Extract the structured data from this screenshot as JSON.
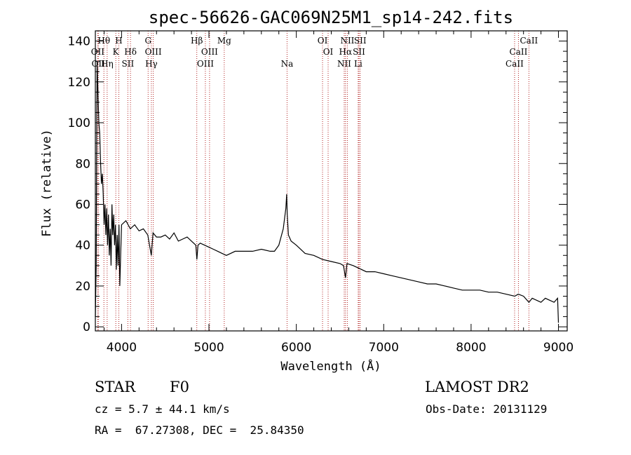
{
  "chart_data": {
    "type": "line",
    "title": "spec-56626-GAC069N25M1_sp14-242.fits",
    "xlabel": "Wavelength (Å)",
    "ylabel": "Flux (relative)",
    "xlim": [
      3700,
      9100
    ],
    "ylim": [
      -2,
      145
    ],
    "xticks": [
      "4000",
      "5000",
      "6000",
      "7000",
      "8000",
      "9000"
    ],
    "yticks": [
      "0",
      "20",
      "40",
      "60",
      "80",
      "100",
      "120",
      "140"
    ],
    "grid": false,
    "series": [
      {
        "x": [
          3700,
          3710,
          3720,
          3730,
          3740,
          3750,
          3760,
          3770,
          3780,
          3790,
          3800,
          3810,
          3820,
          3830,
          3840,
          3850,
          3860,
          3870,
          3880,
          3890,
          3900,
          3910,
          3920,
          3930,
          3940,
          3950,
          3960,
          3970,
          3980,
          3990,
          4000,
          4050,
          4100,
          4150,
          4200,
          4250,
          4300,
          4340,
          4360,
          4400,
          4450,
          4500,
          4550,
          4600,
          4650,
          4700,
          4750,
          4800,
          4850,
          4862,
          4875,
          4900,
          4950,
          5000,
          5050,
          5100,
          5150,
          5200,
          5300,
          5400,
          5500,
          5600,
          5700,
          5750,
          5800,
          5850,
          5880,
          5890,
          5896,
          5910,
          5940,
          6000,
          6100,
          6200,
          6300,
          6400,
          6500,
          6540,
          6563,
          6580,
          6650,
          6700,
          6800,
          6900,
          7000,
          7100,
          7200,
          7300,
          7400,
          7500,
          7600,
          7700,
          7800,
          7900,
          8000,
          8100,
          8200,
          8300,
          8400,
          8500,
          8540,
          8600,
          8662,
          8700,
          8750,
          8800,
          8850,
          8900,
          8950,
          8990,
          9000
        ],
        "values": [
          5,
          30,
          130,
          115,
          100,
          95,
          80,
          70,
          75,
          65,
          50,
          60,
          45,
          58,
          40,
          55,
          35,
          48,
          30,
          60,
          45,
          55,
          40,
          50,
          28,
          45,
          30,
          50,
          20,
          35,
          50,
          52,
          48,
          50,
          47,
          48,
          45,
          35,
          46,
          44,
          44,
          45,
          43,
          46,
          42,
          43,
          44,
          42,
          40,
          33,
          40,
          41,
          40,
          39,
          38,
          37,
          36,
          35,
          37,
          37,
          37,
          38,
          37,
          37,
          40,
          48,
          58,
          65,
          55,
          45,
          42,
          40,
          36,
          35,
          33,
          32,
          31,
          30,
          24,
          31,
          30,
          29,
          27,
          27,
          26,
          25,
          24,
          23,
          22,
          21,
          21,
          20,
          19,
          18,
          18,
          18,
          17,
          17,
          16,
          15,
          16,
          15,
          12,
          14,
          13,
          12,
          14,
          13,
          12,
          14,
          2
        ]
      }
    ],
    "lines": [
      {
        "x": 3727,
        "label": "OII",
        "row": 1
      },
      {
        "x": 3734,
        "label": "OII",
        "row": 2
      },
      {
        "x": 3798,
        "label": "Hθ",
        "row": 0
      },
      {
        "x": 3835,
        "label": "Hη",
        "row": 2
      },
      {
        "x": 3934,
        "label": "K",
        "row": 1
      },
      {
        "x": 3969,
        "label": "H",
        "row": 0
      },
      {
        "x": 4072,
        "label": "SII",
        "row": 2
      },
      {
        "x": 4102,
        "label": "Hδ",
        "row": 1
      },
      {
        "x": 4304,
        "label": "G",
        "row": 0
      },
      {
        "x": 4341,
        "label": "Hγ",
        "row": 2
      },
      {
        "x": 4363,
        "label": "OIII",
        "row": 1
      },
      {
        "x": 4861,
        "label": "Hβ",
        "row": 0
      },
      {
        "x": 4959,
        "label": "OIII",
        "row": 2
      },
      {
        "x": 5007,
        "label": "OIII",
        "row": 1
      },
      {
        "x": 5175,
        "label": "Mg",
        "row": 0
      },
      {
        "x": 5894,
        "label": "Na",
        "row": 2
      },
      {
        "x": 6300,
        "label": "OI",
        "row": 0
      },
      {
        "x": 6364,
        "label": "OI",
        "row": 1
      },
      {
        "x": 6548,
        "label": "NII",
        "row": 2
      },
      {
        "x": 6563,
        "label": "Hα",
        "row": 1
      },
      {
        "x": 6584,
        "label": "NII",
        "row": 0
      },
      {
        "x": 6708,
        "label": "Li",
        "row": 2
      },
      {
        "x": 6717,
        "label": "SII",
        "row": 1
      },
      {
        "x": 6731,
        "label": "SII",
        "row": 0
      },
      {
        "x": 8498,
        "label": "CaII",
        "row": 2
      },
      {
        "x": 8542,
        "label": "CaII",
        "row": 1
      },
      {
        "x": 8662,
        "label": "CaII",
        "row": 0
      }
    ]
  },
  "info": {
    "class": "STAR",
    "subclass": "F0",
    "survey": "LAMOST DR2",
    "redshift": "cz = 5.7 ± 44.1 km/s",
    "obs_date": "Obs-Date: 20131129",
    "coords": "RA =  67.27308, DEC =  25.84350"
  }
}
